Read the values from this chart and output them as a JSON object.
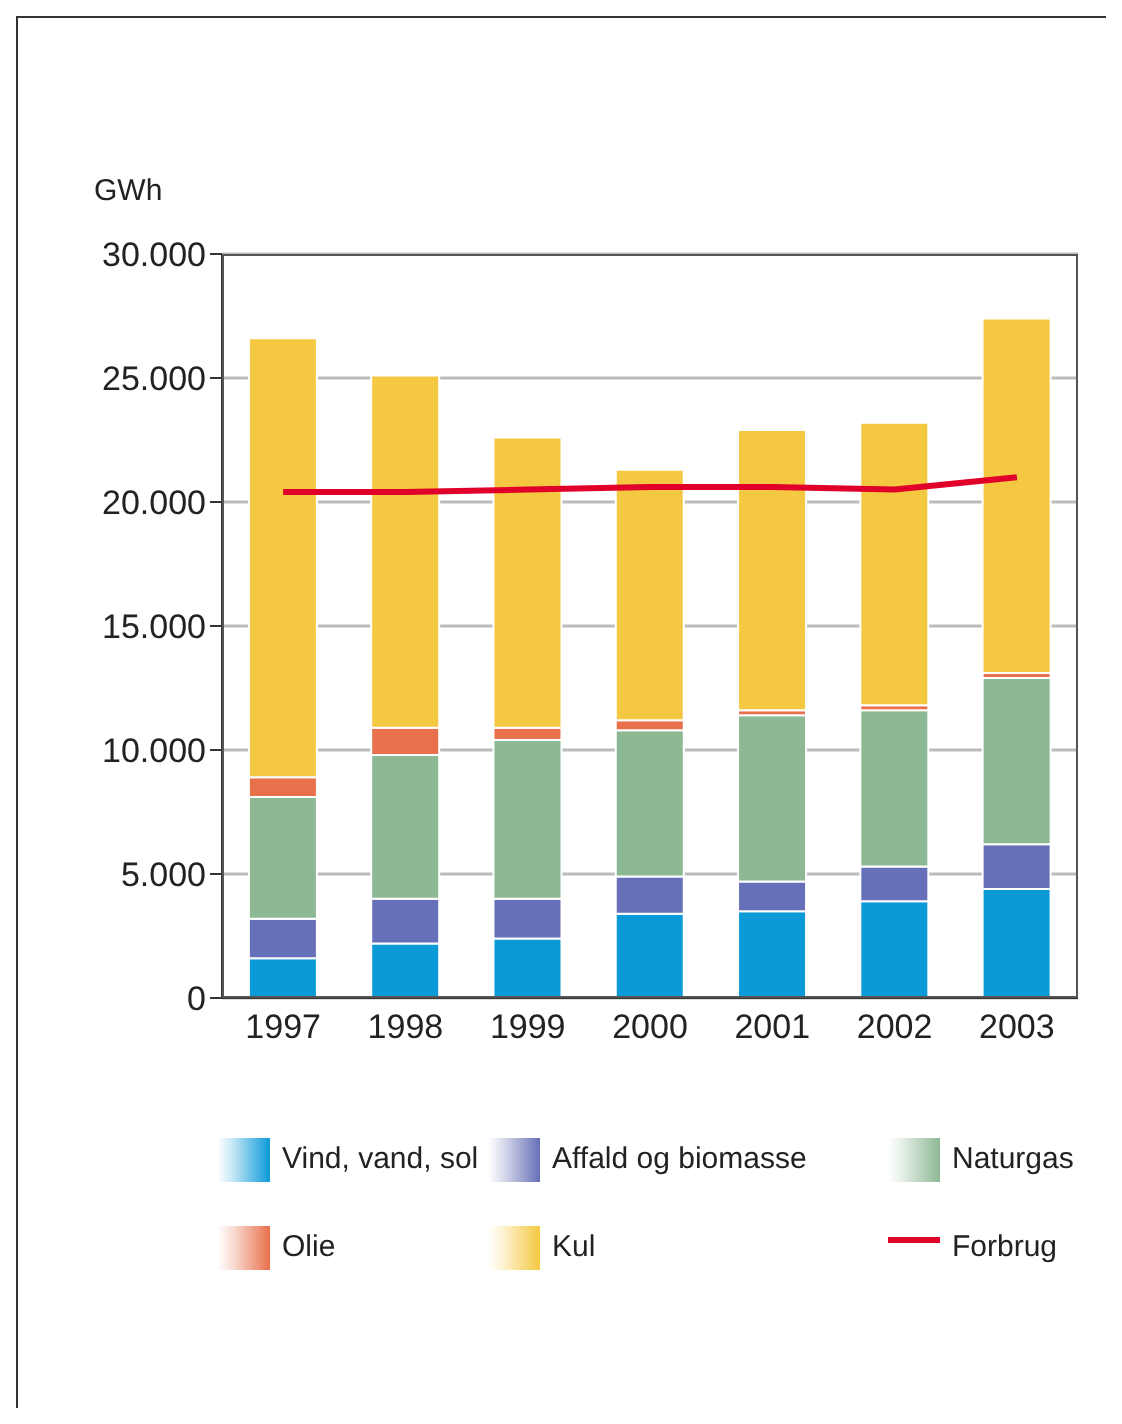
{
  "chart_data": {
    "type": "bar",
    "ylabel": "GWh",
    "categories": [
      "1997",
      "1998",
      "1999",
      "2000",
      "2001",
      "2002",
      "2003"
    ],
    "stacked": true,
    "ylim": [
      0,
      30000
    ],
    "yticks": [
      {
        "value": 0,
        "label": "0"
      },
      {
        "value": 5000,
        "label": "5.000"
      },
      {
        "value": 10000,
        "label": "10.000"
      },
      {
        "value": 15000,
        "label": "15.000"
      },
      {
        "value": 20000,
        "label": "20.000"
      },
      {
        "value": 25000,
        "label": "25.000"
      },
      {
        "value": 30000,
        "label": "30.000"
      }
    ],
    "grid": "y",
    "legend": "bottom",
    "series": [
      {
        "name": "Vind, vand, sol",
        "color": "#0a9ad8",
        "values": [
          1600,
          2200,
          2400,
          3400,
          3500,
          3900,
          4400
        ]
      },
      {
        "name": "Affald og biomasse",
        "color": "#6670b8",
        "values": [
          1600,
          1800,
          1600,
          1500,
          1200,
          1400,
          1800
        ]
      },
      {
        "name": "Naturgas",
        "color": "#8cb894",
        "values": [
          4900,
          5800,
          6400,
          5900,
          6700,
          6300,
          6700
        ]
      },
      {
        "name": "Olie",
        "color": "#e8704a",
        "values": [
          800,
          1100,
          500,
          400,
          200,
          200,
          200
        ]
      },
      {
        "name": "Kul",
        "color": "#f5c842",
        "values": [
          17700,
          14200,
          11700,
          10100,
          11300,
          11400,
          14300
        ]
      },
      {
        "name": "Forbrug",
        "type": "line",
        "color": "#e0002a",
        "marker": "none",
        "values": [
          20400,
          20400,
          20500,
          20600,
          20600,
          20500,
          21000
        ]
      }
    ]
  }
}
